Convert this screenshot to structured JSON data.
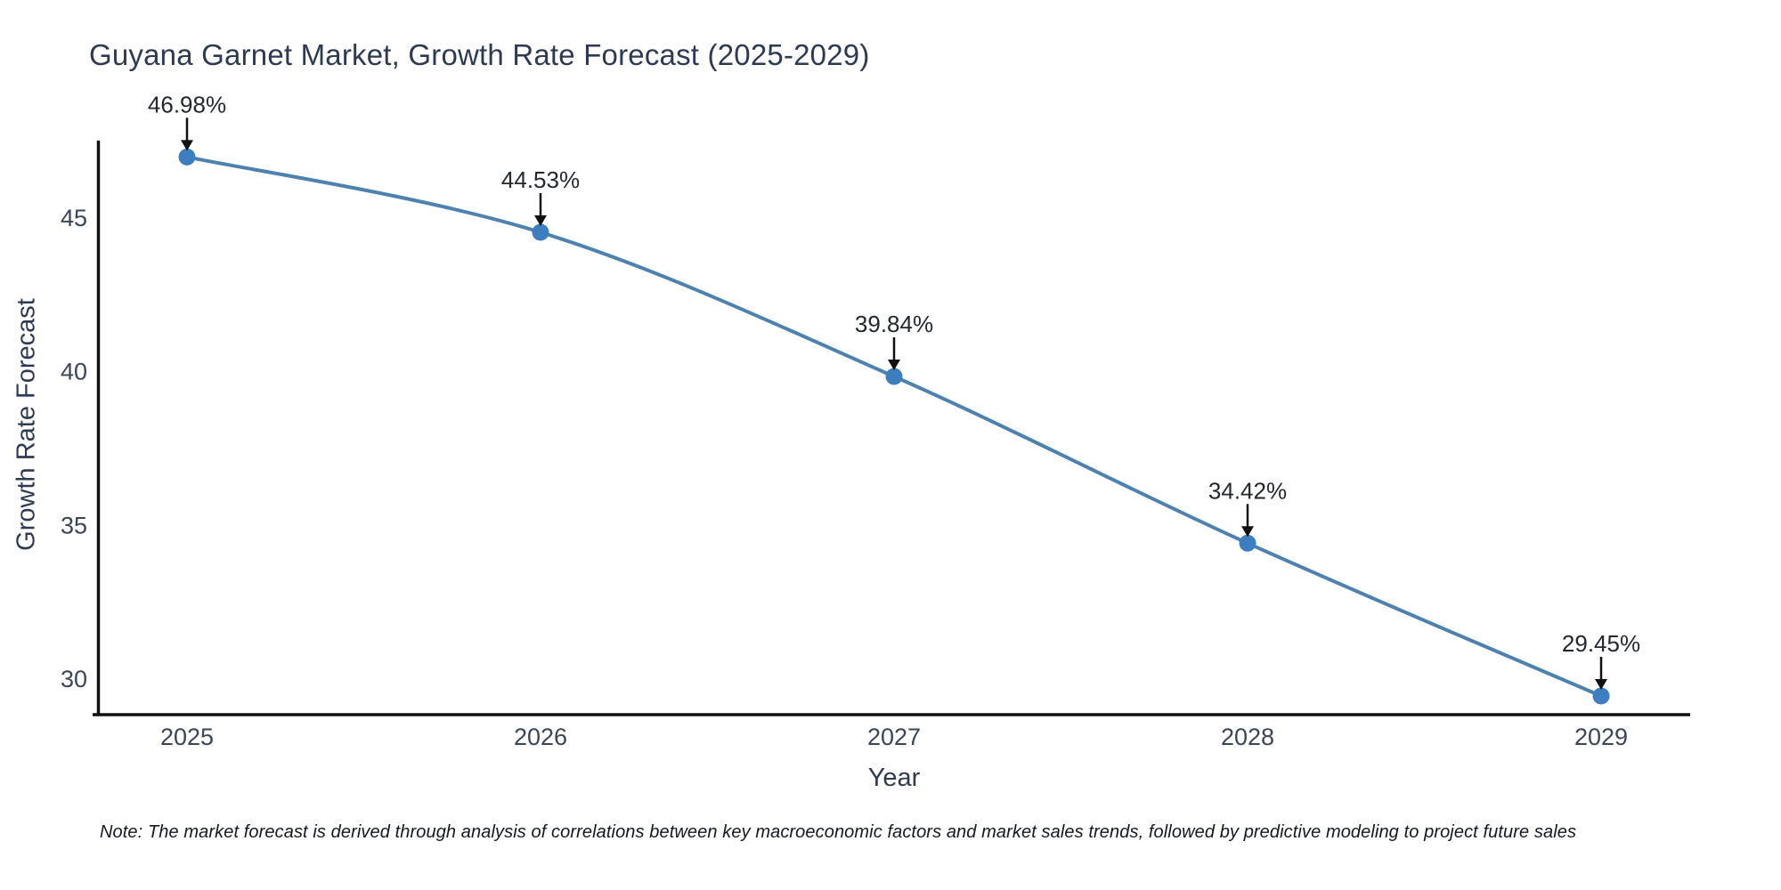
{
  "chart_data": {
    "type": "line",
    "title": "Guyana Garnet Market, Growth Rate Forecast (2025-2029)",
    "xlabel": "Year",
    "ylabel": "Growth Rate Forecast",
    "x": [
      2025,
      2026,
      2027,
      2028,
      2029
    ],
    "series": [
      {
        "name": "Growth Rate Forecast",
        "values": [
          46.98,
          44.53,
          39.84,
          34.42,
          29.45
        ]
      }
    ],
    "point_labels": [
      "46.98%",
      "44.53%",
      "39.84%",
      "34.42%",
      "29.45%"
    ],
    "xticks": [
      "2025",
      "2026",
      "2027",
      "2028",
      "2029"
    ],
    "yticks": [
      30,
      35,
      40,
      45
    ],
    "ylim": [
      28.6,
      47.9
    ],
    "grid": false,
    "legend": false,
    "line_color": "#4d81b0",
    "marker_color": "#3c7ec0",
    "spine_color": "#111111",
    "annotation_arrow_color": "#111111",
    "title_color": "#2e3a52"
  },
  "footnote": "Note: The market forecast is derived through analysis of correlations between key macroeconomic factors and market sales trends, followed by predictive modeling to project future sales"
}
